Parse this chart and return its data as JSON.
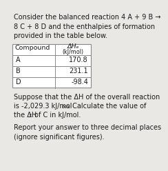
{
  "bg_color": "#eae8e4",
  "text_color": "#1a1a1a",
  "title_lines": [
    "Consider the balanced reaction 4 A + 9 B →",
    "8 C + 8 D and the enthalpies of formation",
    "provided in the table below."
  ],
  "table_header_col1": "Compound",
  "table_header_col2_line1": "ΔHₑ",
  "table_header_col2_line2": "(kJ/mol)",
  "table_rows": [
    [
      "A",
      "170.8"
    ],
    [
      "B",
      "231.1"
    ],
    [
      "D",
      "-98.4"
    ]
  ],
  "body_line1": "Suppose that the ΔH of the overall reaction",
  "body_line2a": "is -2,029.3 kJ/mol",
  "body_line2b": "rxn",
  "body_line2c": ". Calculate the value of",
  "body_line3a": "the ΔH",
  "body_line3b": "f",
  "body_line3c": " of C in kJ/mol.",
  "footer_line1": "Report your answer to three decimal places",
  "footer_line2": "(ignore significant figures).",
  "font_size": 7.0,
  "header_font_size": 6.8,
  "sub_font_size": 5.2
}
